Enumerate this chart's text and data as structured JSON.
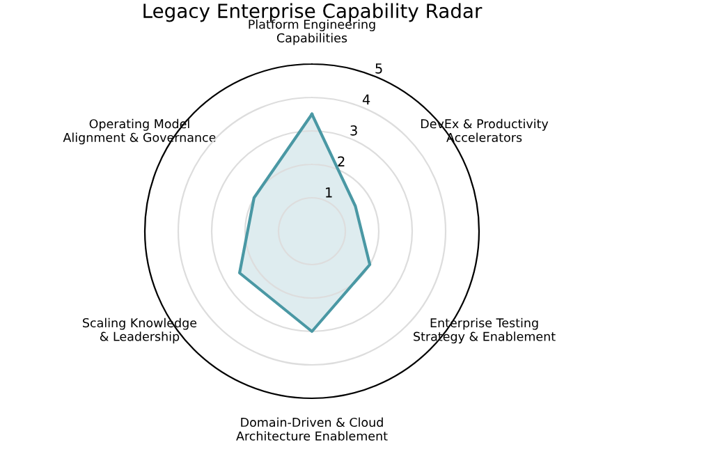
{
  "chart_data": {
    "type": "radar",
    "title": "Legacy Enterprise Capability Radar",
    "categories": [
      "Platform Engineering\nCapabilities",
      "DevEx & Productivity\nAccelerators",
      "Enterprise Testing\nStrategy & Enablement",
      "Domain-Driven & Cloud\nArchitecture Enablement",
      "Scaling Knowledge\n& Leadership",
      "Operating Model\nAlignment & Governance"
    ],
    "series": [
      {
        "color": "#4a98a4",
        "values": [
          3.5,
          1.5,
          2.0,
          3.0,
          2.5,
          2.0
        ]
      }
    ],
    "ylim": [
      0,
      5
    ],
    "yticks": [
      1,
      2,
      3,
      4,
      5
    ],
    "grid": true
  }
}
